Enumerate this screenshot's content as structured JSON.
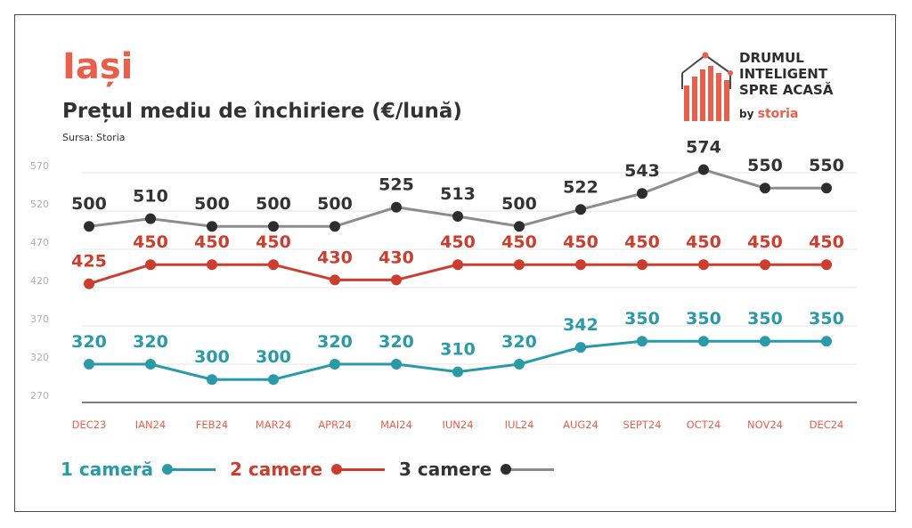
{
  "header": {
    "city": "Iași",
    "subtitle": "Prețul mediu de închiriere (€/lună)",
    "source": "Sursa: Storia"
  },
  "brand": {
    "line1": "DRUMUL",
    "line2": "INTELIGENT",
    "line3": "SPRE ACASĂ",
    "by": "by",
    "name": "storia",
    "accent_color": "#e8604c"
  },
  "chart_data": {
    "type": "line",
    "title": "Prețul mediu de închiriere (€/lună)",
    "ylim": [
      270,
      600
    ],
    "yticks": [
      "270",
      "320",
      "370",
      "420",
      "470",
      "520",
      "570"
    ],
    "grid": true,
    "categories": [
      "DEC23",
      "IAN24",
      "FEB24",
      "MAR24",
      "APR24",
      "MAI24",
      "IUN24",
      "IUL24",
      "AUG24",
      "SEPT24",
      "OCT24",
      "NOV24",
      "DEC24"
    ],
    "legend_position": "bottom-left",
    "series": [
      {
        "name": "1 cameră",
        "color": "#2a9aa8",
        "values": [
          320,
          320,
          300,
          300,
          320,
          320,
          310,
          320,
          342,
          350,
          350,
          350,
          350
        ],
        "labels": [
          "320",
          "320",
          "300",
          "300",
          "320",
          "320",
          "310",
          "320",
          "342",
          "350",
          "350",
          "350",
          "350"
        ]
      },
      {
        "name": "2 camere",
        "color": "#cc3d2e",
        "values": [
          425,
          450,
          450,
          450,
          430,
          430,
          450,
          450,
          450,
          450,
          450,
          450,
          450
        ],
        "labels": [
          "425",
          "450",
          "450",
          "450",
          "430",
          "430",
          "450",
          "450",
          "450",
          "450",
          "450",
          "450",
          "450"
        ]
      },
      {
        "name": "3 camere",
        "color": "#2d2d2d",
        "line_color": "#8c8c8c",
        "values": [
          500,
          510,
          500,
          500,
          500,
          525,
          513,
          500,
          522,
          543,
          574,
          550,
          550
        ],
        "labels": [
          "500",
          "510",
          "500",
          "500",
          "500",
          "525",
          "513",
          "500",
          "522",
          "543",
          "574",
          "550",
          "550"
        ]
      }
    ]
  }
}
